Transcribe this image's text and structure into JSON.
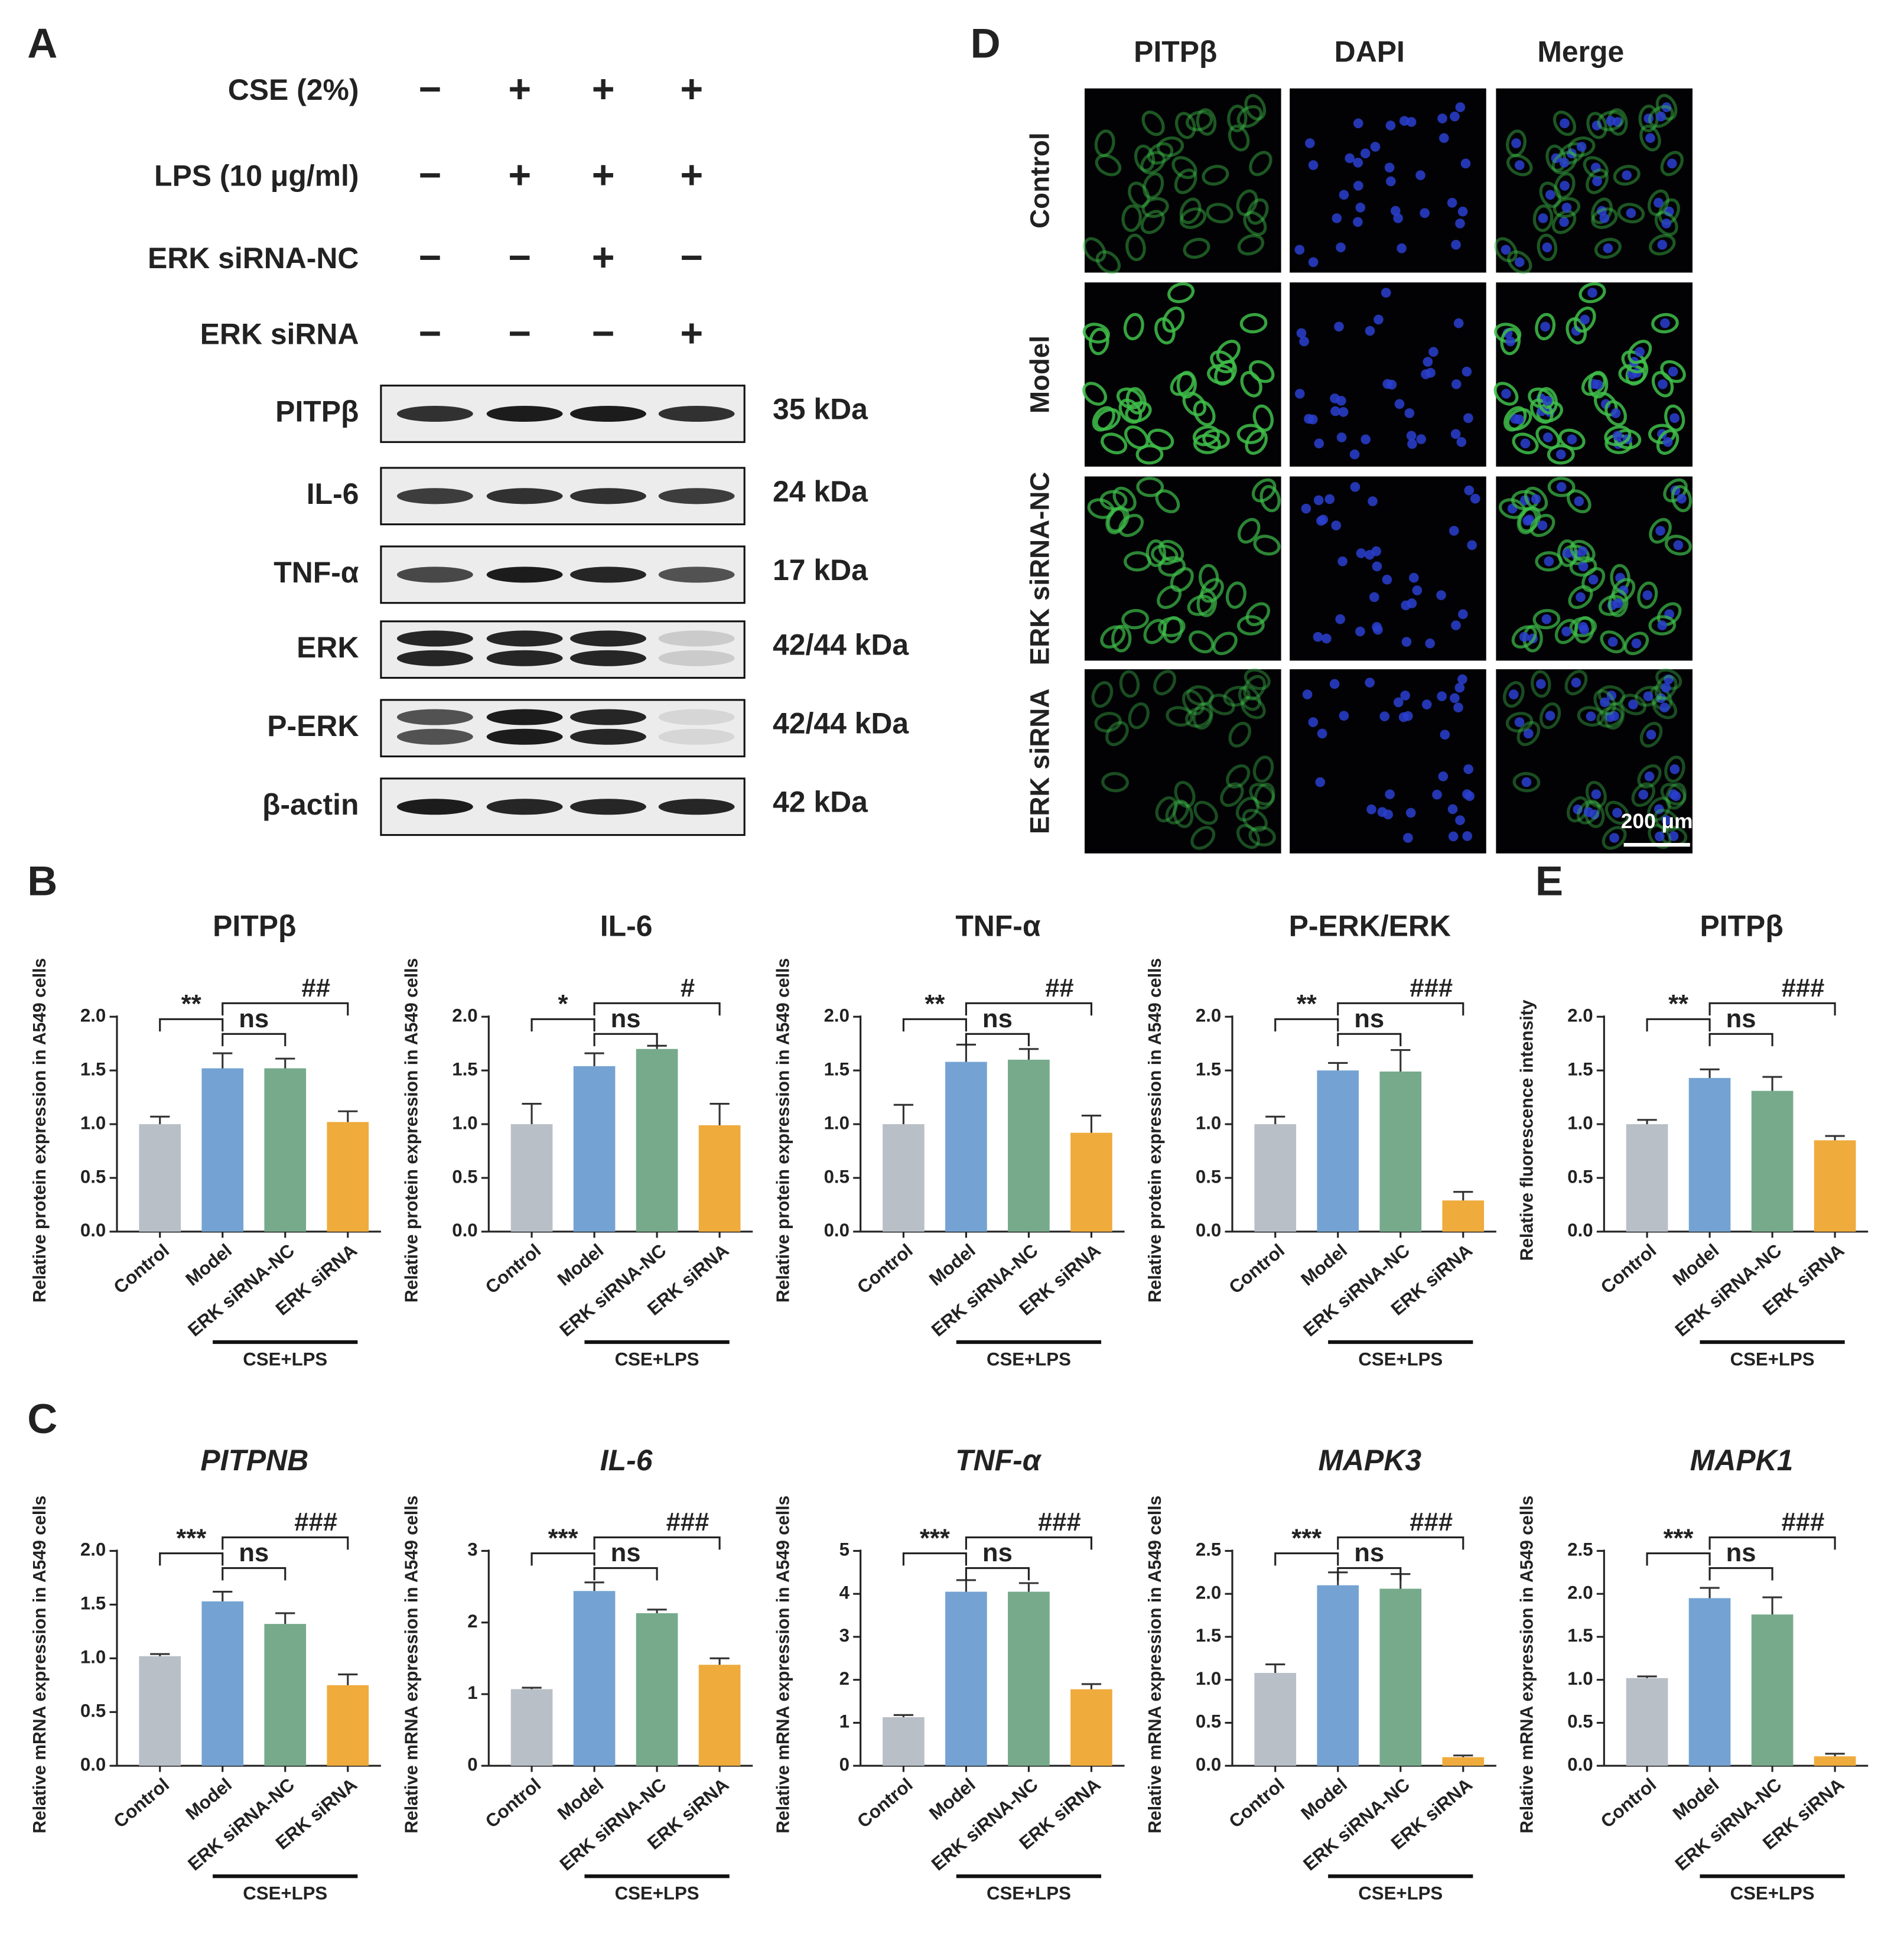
{
  "panels": [
    "A",
    "B",
    "C",
    "D",
    "E"
  ],
  "blot": {
    "treatments": [
      {
        "label": "CSE (2%)",
        "signs": [
          "−",
          "+",
          "+",
          "+"
        ]
      },
      {
        "label": "LPS (10 μg/ml)",
        "signs": [
          "−",
          "+",
          "+",
          "+"
        ]
      },
      {
        "label": "ERK siRNA-NC",
        "signs": [
          "−",
          "−",
          "+",
          "−"
        ]
      },
      {
        "label": "ERK siRNA",
        "signs": [
          "−",
          "−",
          "−",
          "+"
        ]
      }
    ],
    "proteins": [
      {
        "name": "PITPβ",
        "size": "35 kDa"
      },
      {
        "name": "IL-6",
        "size": "24 kDa"
      },
      {
        "name": "TNF-α",
        "size": "17 kDa"
      },
      {
        "name": "ERK",
        "size": "42/44 kDa"
      },
      {
        "name": "P-ERK",
        "size": "42/44 kDa"
      },
      {
        "name": "β-actin",
        "size": "42 kDa"
      }
    ]
  },
  "images": {
    "channels": [
      "PITPβ",
      "DAPI",
      "Merge"
    ],
    "groups": [
      "Control",
      "Model",
      "ERK siRNA-NC",
      "ERK siRNA"
    ],
    "scale_bar": "200 μm"
  },
  "chart_data": [
    {
      "type": "bar",
      "title": "PITPβ",
      "title_style": "normal",
      "y_label": "Relative protein expression in A549 cells",
      "categories": [
        "Control",
        "Model",
        "ERK siRNA-NC",
        "ERK siRNA"
      ],
      "group_label": "CSE+LPS",
      "values": [
        1.0,
        1.52,
        1.52,
        1.02
      ],
      "errors": [
        0.07,
        0.14,
        0.09,
        0.1
      ],
      "colors": [
        "#b9bfc6",
        "#74a3d3",
        "#76aa8b",
        "#efab3c"
      ],
      "annotations": [
        "**",
        "ns",
        "##"
      ],
      "ylim": [
        0,
        2
      ],
      "yticks": [
        {
          "value": 0,
          "label": "0.0"
        },
        0.5,
        {
          "value": 1,
          "label": "1.0"
        },
        1.5,
        {
          "value": 2,
          "label": "2.0"
        }
      ]
    },
    {
      "type": "bar",
      "title": "IL-6",
      "title_style": "normal",
      "y_label": "Relative protein expression in A549 cells",
      "categories": [
        "Control",
        "Model",
        "ERK siRNA-NC",
        "ERK siRNA"
      ],
      "group_label": "CSE+LPS",
      "values": [
        1.0,
        1.54,
        1.7,
        0.99
      ],
      "errors": [
        0.19,
        0.12,
        0.03,
        0.2
      ],
      "colors": [
        "#b9bfc6",
        "#74a3d3",
        "#76aa8b",
        "#efab3c"
      ],
      "annotations": [
        "*",
        "ns",
        "#"
      ],
      "ylim": [
        0,
        2
      ],
      "yticks": [
        {
          "value": 0,
          "label": "0.0"
        },
        0.5,
        {
          "value": 1,
          "label": "1.0"
        },
        1.5,
        {
          "value": 2,
          "label": "2.0"
        }
      ]
    },
    {
      "type": "bar",
      "title": "TNF-α",
      "title_style": "normal",
      "y_label": "Relative protein expression in A549 cells",
      "categories": [
        "Control",
        "Model",
        "ERK siRNA-NC",
        "ERK siRNA"
      ],
      "group_label": "CSE+LPS",
      "values": [
        1.0,
        1.58,
        1.6,
        0.92
      ],
      "errors": [
        0.18,
        0.16,
        0.1,
        0.16
      ],
      "colors": [
        "#b9bfc6",
        "#74a3d3",
        "#76aa8b",
        "#efab3c"
      ],
      "annotations": [
        "**",
        "ns",
        "##"
      ],
      "ylim": [
        0,
        2
      ],
      "yticks": [
        {
          "value": 0,
          "label": "0.0"
        },
        0.5,
        {
          "value": 1,
          "label": "1.0"
        },
        1.5,
        {
          "value": 2,
          "label": "2.0"
        }
      ]
    },
    {
      "type": "bar",
      "title": "P-ERK/ERK",
      "title_style": "normal",
      "y_label": "Relative protein expression in A549 cells",
      "categories": [
        "Control",
        "Model",
        "ERK siRNA-NC",
        "ERK siRNA"
      ],
      "group_label": "CSE+LPS",
      "values": [
        1.0,
        1.5,
        1.49,
        0.29
      ],
      "errors": [
        0.07,
        0.07,
        0.2,
        0.08
      ],
      "colors": [
        "#b9bfc6",
        "#74a3d3",
        "#76aa8b",
        "#efab3c"
      ],
      "annotations": [
        "**",
        "ns",
        "###"
      ],
      "ylim": [
        0,
        2
      ],
      "yticks": [
        {
          "value": 0,
          "label": "0.0"
        },
        0.5,
        {
          "value": 1,
          "label": "1.0"
        },
        1.5,
        {
          "value": 2,
          "label": "2.0"
        }
      ]
    },
    {
      "type": "bar",
      "title": "PITPβ",
      "title_style": "normal",
      "y_label": "Relative fluorescence intensity",
      "categories": [
        "Control",
        "Model",
        "ERK siRNA-NC",
        "ERK siRNA"
      ],
      "group_label": "CSE+LPS",
      "values": [
        1.0,
        1.43,
        1.31,
        0.85
      ],
      "errors": [
        0.04,
        0.08,
        0.13,
        0.04
      ],
      "colors": [
        "#b9bfc6",
        "#74a3d3",
        "#76aa8b",
        "#efab3c"
      ],
      "annotations": [
        "**",
        "ns",
        "###"
      ],
      "ylim": [
        0,
        2
      ],
      "yticks": [
        {
          "value": 0,
          "label": "0.0"
        },
        0.5,
        {
          "value": 1,
          "label": "1.0"
        },
        1.5,
        {
          "value": 2,
          "label": "2.0"
        }
      ]
    },
    {
      "type": "bar",
      "title": "PITPNB",
      "title_style": "italic",
      "y_label": "Relative mRNA expression in A549 cells",
      "categories": [
        "Control",
        "Model",
        "ERK siRNA-NC",
        "ERK siRNA"
      ],
      "group_label": "CSE+LPS",
      "values": [
        1.02,
        1.53,
        1.32,
        0.75
      ],
      "errors": [
        0.02,
        0.09,
        0.1,
        0.1
      ],
      "colors": [
        "#b9bfc6",
        "#74a3d3",
        "#76aa8b",
        "#efab3c"
      ],
      "annotations": [
        "***",
        "ns",
        "###"
      ],
      "ylim": [
        0,
        2
      ],
      "yticks": [
        {
          "value": 0,
          "label": "0.0"
        },
        0.5,
        {
          "value": 1,
          "label": "1.0"
        },
        1.5,
        {
          "value": 2,
          "label": "2.0"
        }
      ]
    },
    {
      "type": "bar",
      "title": "IL-6",
      "title_style": "italic",
      "y_label": "Relative mRNA expression in A549 cells",
      "categories": [
        "Control",
        "Model",
        "ERK siRNA-NC",
        "ERK siRNA"
      ],
      "group_label": "CSE+LPS",
      "values": [
        1.07,
        2.44,
        2.13,
        1.41
      ],
      "errors": [
        0.02,
        0.12,
        0.05,
        0.09
      ],
      "colors": [
        "#b9bfc6",
        "#74a3d3",
        "#76aa8b",
        "#efab3c"
      ],
      "annotations": [
        "***",
        "ns",
        "###"
      ],
      "ylim": [
        0,
        3
      ],
      "yticks": [
        0,
        1,
        2,
        3
      ]
    },
    {
      "type": "bar",
      "title": "TNF-α",
      "title_style": "italic",
      "y_label": "Relative mRNA expression in A549 cells",
      "categories": [
        "Control",
        "Model",
        "ERK siRNA-NC",
        "ERK siRNA"
      ],
      "group_label": "CSE+LPS",
      "values": [
        1.13,
        4.05,
        4.05,
        1.78
      ],
      "errors": [
        0.05,
        0.27,
        0.2,
        0.12
      ],
      "colors": [
        "#b9bfc6",
        "#74a3d3",
        "#76aa8b",
        "#efab3c"
      ],
      "annotations": [
        "***",
        "ns",
        "###"
      ],
      "ylim": [
        0,
        5
      ],
      "yticks": [
        0,
        1,
        2,
        3,
        4,
        5
      ]
    },
    {
      "type": "bar",
      "title": "MAPK3",
      "title_style": "italic",
      "y_label": "Relative mRNA expression in A549 cells",
      "categories": [
        "Control",
        "Model",
        "ERK siRNA-NC",
        "ERK siRNA"
      ],
      "group_label": "CSE+LPS",
      "values": [
        1.08,
        2.1,
        2.06,
        0.1
      ],
      "errors": [
        0.1,
        0.15,
        0.17,
        0.02
      ],
      "colors": [
        "#b9bfc6",
        "#74a3d3",
        "#76aa8b",
        "#efab3c"
      ],
      "annotations": [
        "***",
        "ns",
        "###"
      ],
      "ylim": [
        0,
        2.5
      ],
      "yticks": [
        {
          "value": 0,
          "label": "0.0"
        },
        0.5,
        {
          "value": 1,
          "label": "1.0"
        },
        1.5,
        {
          "value": 2,
          "label": "2.0"
        },
        2.5
      ]
    },
    {
      "type": "bar",
      "title": "MAPK1",
      "title_style": "italic",
      "y_label": "Relative mRNA expression in A549 cells",
      "categories": [
        "Control",
        "Model",
        "ERK siRNA-NC",
        "ERK siRNA"
      ],
      "group_label": "CSE+LPS",
      "values": [
        1.02,
        1.95,
        1.76,
        0.11
      ],
      "errors": [
        0.02,
        0.12,
        0.2,
        0.03
      ],
      "colors": [
        "#b9bfc6",
        "#74a3d3",
        "#76aa8b",
        "#efab3c"
      ],
      "annotations": [
        "***",
        "ns",
        "###"
      ],
      "ylim": [
        0,
        2.5
      ],
      "yticks": [
        {
          "value": 0,
          "label": "0.0"
        },
        0.5,
        {
          "value": 1,
          "label": "1.0"
        },
        1.5,
        {
          "value": 2,
          "label": "2.0"
        },
        2.5
      ]
    }
  ]
}
